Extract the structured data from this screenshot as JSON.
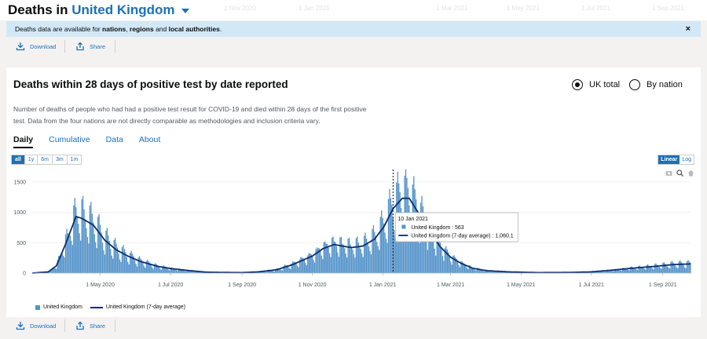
{
  "header": {
    "title_prefix": "Deaths in",
    "location": "United Kingdom",
    "faint_dates": [
      "1 Nov 2020",
      "1 Jan 2021",
      "1 Mar 2021",
      "1 May 2021",
      "1 Jul 2021",
      "1 Sep 2021"
    ]
  },
  "banner": {
    "part1": "Deaths data are available for ",
    "nations": "nations",
    "part2": ", ",
    "regions": "regions",
    "part3": " and ",
    "local": "local authorities",
    "part4": ".",
    "close": "×"
  },
  "actions": {
    "download": "Download",
    "share": "Share"
  },
  "card": {
    "title": "Deaths within 28 days of positive test by date reported",
    "radio_uk": "UK total",
    "radio_nation": "By nation",
    "description": "Number of deaths of people who had had a positive test result for COVID-19 and died within 28 days of the first positive test. Data from the four nations are not directly comparable as methodologies and inclusion criteria vary.",
    "tabs": [
      "Daily",
      "Cumulative",
      "Data",
      "About"
    ],
    "ranges": [
      "all",
      "1y",
      "6m",
      "3m",
      "1m"
    ],
    "scale_linear": "Linear",
    "scale_log": "Log"
  },
  "colors": {
    "bar": "#5694ca",
    "line": "#0b2e6f",
    "accent": "#1d70b8"
  },
  "chart_data": {
    "type": "bar",
    "ylim": [
      0,
      1600
    ],
    "y_ticks": [
      0,
      500,
      1000,
      1500
    ],
    "x_ticks": [
      "1 May 2020",
      "1 Jul 2020",
      "1 Sep 2020",
      "1 Nov 2020",
      "1 Jan 2021",
      "1 Mar 2021",
      "1 May 2021",
      "1 Jul 2021",
      "1 Sep 2021"
    ],
    "x_range": [
      "2020-03-03",
      "2021-09-25"
    ],
    "tooltip": {
      "date": "10 Jan 2021",
      "bar_label": "United Kingdom",
      "bar_value": "563",
      "line_label": "United Kingdom (7-day average)",
      "line_value": "1,060.1"
    },
    "series": [
      {
        "name": "United Kingdom",
        "kind": "bar"
      },
      {
        "name": "United Kingdom (7-day average)",
        "kind": "line"
      }
    ],
    "average_profile": [
      [
        "2020-03-03",
        0
      ],
      [
        "2020-03-17",
        20
      ],
      [
        "2020-03-24",
        120
      ],
      [
        "2020-04-01",
        480
      ],
      [
        "2020-04-10",
        930
      ],
      [
        "2020-04-15",
        900
      ],
      [
        "2020-04-25",
        790
      ],
      [
        "2020-05-05",
        540
      ],
      [
        "2020-05-15",
        380
      ],
      [
        "2020-05-25",
        280
      ],
      [
        "2020-06-05",
        190
      ],
      [
        "2020-06-20",
        110
      ],
      [
        "2020-07-01",
        75
      ],
      [
        "2020-07-15",
        45
      ],
      [
        "2020-08-01",
        15
      ],
      [
        "2020-08-20",
        10
      ],
      [
        "2020-09-01",
        8
      ],
      [
        "2020-09-15",
        20
      ],
      [
        "2020-10-01",
        55
      ],
      [
        "2020-10-15",
        140
      ],
      [
        "2020-11-01",
        280
      ],
      [
        "2020-11-10",
        400
      ],
      [
        "2020-11-20",
        470
      ],
      [
        "2020-11-28",
        440
      ],
      [
        "2020-12-05",
        420
      ],
      [
        "2020-12-15",
        445
      ],
      [
        "2020-12-25",
        560
      ],
      [
        "2021-01-02",
        760
      ],
      [
        "2021-01-10",
        1060
      ],
      [
        "2021-01-18",
        1230
      ],
      [
        "2021-01-24",
        1230
      ],
      [
        "2021-02-01",
        990
      ],
      [
        "2021-02-10",
        710
      ],
      [
        "2021-02-20",
        430
      ],
      [
        "2021-03-01",
        260
      ],
      [
        "2021-03-10",
        160
      ],
      [
        "2021-03-20",
        80
      ],
      [
        "2021-04-01",
        40
      ],
      [
        "2021-04-20",
        20
      ],
      [
        "2021-05-15",
        8
      ],
      [
        "2021-06-10",
        10
      ],
      [
        "2021-07-01",
        20
      ],
      [
        "2021-07-20",
        50
      ],
      [
        "2021-08-05",
        80
      ],
      [
        "2021-08-25",
        110
      ],
      [
        "2021-09-10",
        140
      ],
      [
        "2021-09-25",
        150
      ]
    ]
  }
}
